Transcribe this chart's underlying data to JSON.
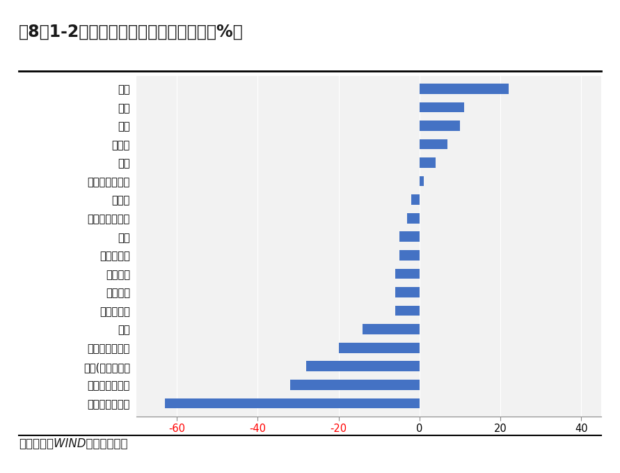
{
  "title": "图8：1-2月主要商品进口金额增速变化（%）",
  "footer": "资料来源：WIND，财信研究院",
  "categories": [
    "干鲜瓜果及坚果",
    "未锻轧铜及铜材",
    "汽车(包括底盘）",
    "铁矿砂及其精矿",
    "肥料",
    "食用植物油",
    "集成电路",
    "煤及褐煤",
    "原木及锯材",
    "钢材",
    "铜矿砂及其精矿",
    "农产品",
    "初级形状的塑料",
    "原油",
    "天然气",
    "粮食",
    "纸浆",
    "大豆"
  ],
  "values": [
    -63,
    -32,
    -28,
    -20,
    -14,
    -6,
    -6,
    -6,
    -5,
    -5,
    -3,
    -2,
    1,
    4,
    7,
    10,
    11,
    22
  ],
  "bar_color": "#4472C4",
  "xlim": [
    -70,
    45
  ],
  "xticks": [
    -60,
    -40,
    -20,
    0,
    20,
    40
  ],
  "tick_color_negative": "#FF0000",
  "tick_color_zero_positive": "#000000",
  "background_color": "#FFFFFF",
  "plot_bg_color": "#F2F2F2",
  "title_fontsize": 17,
  "label_fontsize": 10.5,
  "tick_fontsize": 10.5,
  "footer_fontsize": 12
}
